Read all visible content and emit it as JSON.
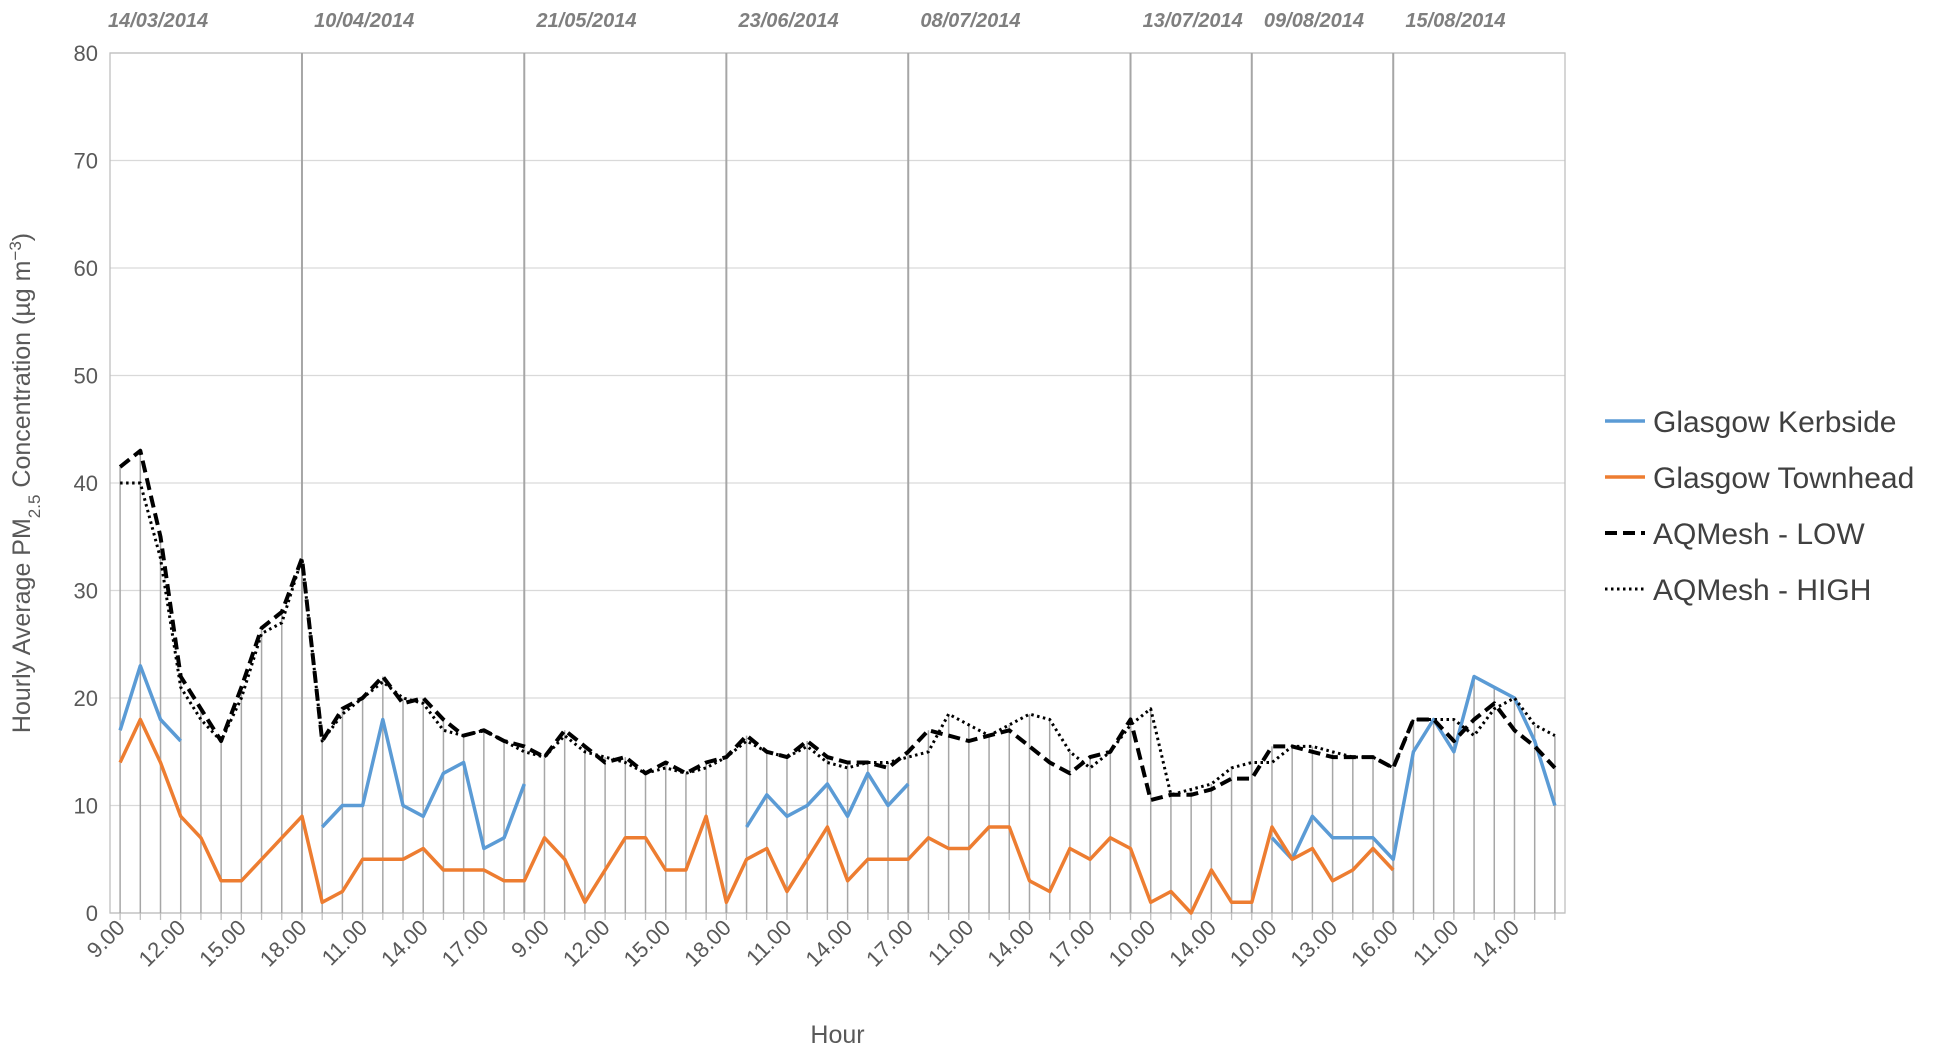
{
  "chart_data": {
    "type": "line",
    "y_label_parts": [
      "Hourly Average PM",
      "2.5",
      " Concentration (µg m",
      "−3",
      ")"
    ],
    "x_label": "Hour",
    "annotations": [
      "14/03/2014",
      "10/04/2014",
      "21/05/2014",
      "23/06/2014",
      "08/07/2014",
      "13/07/2014",
      "09/08/2014",
      "15/08/2014"
    ],
    "categories": [
      "9.00",
      null,
      null,
      "12.00",
      null,
      null,
      "15.00",
      null,
      null,
      "18.00",
      null,
      null,
      "11.00",
      null,
      null,
      "14.00",
      null,
      null,
      "17.00",
      null,
      null,
      "9.00",
      null,
      null,
      "12.00",
      null,
      null,
      "15.00",
      null,
      null,
      "18.00",
      null,
      null,
      "11.00",
      null,
      null,
      "14.00",
      null,
      null,
      "17.00",
      null,
      null,
      "11.00",
      null,
      null,
      "14.00",
      null,
      null,
      "17.00",
      null,
      null,
      "10.00",
      null,
      null,
      "14.00",
      null,
      null,
      "10.00",
      null,
      null,
      "13.00",
      null,
      null,
      "16.00",
      null,
      null,
      "11.00",
      null,
      null,
      "14.00",
      null,
      null
    ],
    "series": [
      {
        "name": "Glasgow Kerbside",
        "color": "#5b9bd5",
        "style": "solid",
        "values": [
          17,
          23,
          18,
          16,
          null,
          null,
          null,
          null,
          null,
          null,
          8,
          10,
          10,
          18,
          10,
          9,
          13,
          14,
          6,
          7,
          12,
          null,
          null,
          null,
          null,
          null,
          null,
          null,
          null,
          null,
          null,
          8,
          11,
          9,
          10,
          12,
          9,
          13,
          10,
          12,
          null,
          null,
          null,
          null,
          null,
          null,
          null,
          null,
          null,
          null,
          null,
          null,
          null,
          null,
          null,
          null,
          null,
          7,
          5,
          9,
          7,
          7,
          7,
          5,
          15,
          18,
          15,
          22,
          21,
          20,
          16,
          10
        ]
      },
      {
        "name": "Glasgow Townhead",
        "color": "#ed7d31",
        "style": "solid",
        "values": [
          14,
          18,
          14,
          9,
          7,
          3,
          3,
          5,
          7,
          9,
          1,
          2,
          5,
          5,
          5,
          6,
          4,
          4,
          4,
          3,
          3,
          7,
          5,
          1,
          4,
          7,
          7,
          4,
          4,
          9,
          1,
          5,
          6,
          2,
          5,
          8,
          3,
          5,
          5,
          5,
          7,
          6,
          6,
          8,
          8,
          3,
          2,
          6,
          5,
          7,
          6,
          1,
          2,
          0,
          4,
          1,
          1,
          8,
          5,
          6,
          3,
          4,
          6,
          4,
          null,
          null,
          null,
          null,
          null,
          null,
          null,
          null
        ]
      },
      {
        "name": "AQMesh - LOW",
        "color": "#000000",
        "style": "dashed",
        "values": [
          41.5,
          43,
          35,
          22,
          19,
          16,
          21,
          26.5,
          28,
          33,
          16,
          19,
          20,
          22,
          19.5,
          20,
          18,
          16.5,
          17,
          16,
          15.5,
          14.5,
          17,
          15.5,
          14,
          14.5,
          13,
          14,
          13,
          14,
          14.5,
          16.5,
          15,
          14.5,
          16,
          14.5,
          14,
          14,
          13.5,
          15,
          17,
          16.5,
          16,
          16.5,
          17,
          15.5,
          14,
          13,
          14.5,
          15,
          18,
          10.5,
          11,
          11,
          11.5,
          12.5,
          12.5,
          15.5,
          15.5,
          15,
          14.5,
          14.5,
          14.5,
          13.5,
          18,
          18,
          16,
          18,
          19.5,
          17,
          15.5,
          13.5
        ]
      },
      {
        "name": "AQMesh - HIGH",
        "color": "#000000",
        "style": "dotted",
        "values": [
          40,
          40,
          33,
          21,
          18,
          16,
          20,
          26,
          27,
          33,
          16,
          18.5,
          20,
          21.5,
          20,
          19.5,
          17,
          16.5,
          17,
          16,
          15,
          14.5,
          16.5,
          15,
          14.5,
          14,
          13,
          13.5,
          13,
          13.5,
          14.5,
          16,
          15,
          14.5,
          15.5,
          14,
          13.5,
          14,
          14,
          14.5,
          15,
          18.5,
          17.5,
          16.5,
          17.5,
          18.5,
          18,
          15,
          13.5,
          15,
          17.5,
          19,
          11,
          11.5,
          12,
          13.5,
          14,
          14,
          15.5,
          15.5,
          15,
          14.5,
          14.5,
          13.5,
          18,
          18,
          18,
          16.5,
          19,
          20,
          17.5,
          16.5
        ]
      }
    ],
    "ylim": [
      0,
      80
    ],
    "yticks": [
      0,
      10,
      20,
      30,
      40,
      50,
      60,
      70,
      80
    ],
    "grid": true,
    "legend": "right"
  }
}
